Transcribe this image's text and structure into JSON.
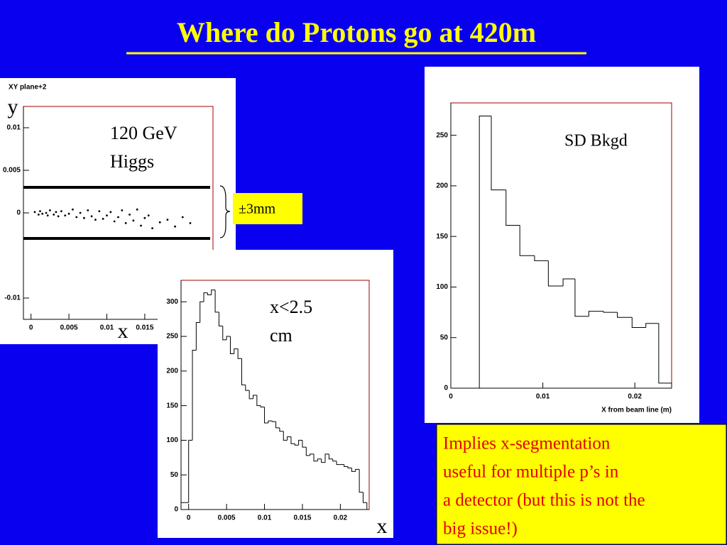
{
  "title": "Where do Protons go at 420m",
  "chart_data": [
    {
      "type": "scatter",
      "title": "XY plane+2",
      "ylabel": "y",
      "xlabel": "x",
      "annotation": [
        "120 GeV",
        "Higgs"
      ],
      "band_label": "±3mm",
      "hlines": [
        0.003,
        -0.003
      ],
      "xlim": [
        -0.001,
        0.024
      ],
      "ylim": [
        -0.0125,
        0.0125
      ],
      "xticks": [
        0,
        0.005,
        0.01,
        0.015
      ],
      "yticks": [
        -0.01,
        0,
        0.005,
        0.01
      ],
      "color": "#000000",
      "x": [
        0.0005,
        0.001,
        0.0012,
        0.0015,
        0.002,
        0.0022,
        0.0025,
        0.003,
        0.0033,
        0.0036,
        0.004,
        0.0045,
        0.005,
        0.0055,
        0.006,
        0.0065,
        0.007,
        0.0075,
        0.008,
        0.0085,
        0.009,
        0.0095,
        0.01,
        0.0105,
        0.011,
        0.0115,
        0.012,
        0.0125,
        0.013,
        0.0135,
        0.014,
        0.0145,
        0.015,
        0.0155,
        0.016,
        0.017,
        0.018,
        0.019,
        0.02,
        0.021
      ],
      "y": [
        0.0001,
        -0.0002,
        0.0002,
        -0.0001,
        0,
        -0.0003,
        0.0003,
        -0.0002,
        0.0001,
        -0.0004,
        0.0002,
        -0.0003,
        -0.0001,
        0.0004,
        -0.0005,
        0,
        -0.0006,
        0.0003,
        -0.0004,
        -0.0008,
        0.0002,
        -0.0007,
        -0.0003,
        0.0001,
        -0.001,
        -0.0005,
        0.0003,
        -0.0012,
        -0.0002,
        -0.0009,
        0.0004,
        -0.0015,
        -0.0006,
        -0.0003,
        -0.0018,
        -0.0011,
        -0.0008,
        -0.0016,
        -0.0005,
        -0.0012
      ]
    },
    {
      "type": "histogram",
      "xlabel": "x",
      "annotation": [
        "x<2.5",
        "cm"
      ],
      "xlim": [
        -0.001,
        0.0238
      ],
      "ylim": [
        0,
        331
      ],
      "xticks": [
        0,
        0.005,
        0.01,
        0.015,
        0.02
      ],
      "yticks": [
        0,
        50,
        100,
        150,
        200,
        250,
        300
      ],
      "color": "#000000",
      "bins": [
        -0.001,
        -0.0005,
        0,
        0.0005,
        0.001,
        0.0015,
        0.002,
        0.0025,
        0.003,
        0.0035,
        0.004,
        0.0045,
        0.005,
        0.0055,
        0.006,
        0.0065,
        0.007,
        0.0075,
        0.008,
        0.0085,
        0.009,
        0.0095,
        0.01,
        0.0105,
        0.011,
        0.0115,
        0.012,
        0.0125,
        0.013,
        0.0135,
        0.014,
        0.0145,
        0.015,
        0.0155,
        0.016,
        0.0165,
        0.017,
        0.0175,
        0.018,
        0.0185,
        0.019,
        0.0195,
        0.02,
        0.0205,
        0.021,
        0.0215,
        0.022,
        0.0225,
        0.023,
        0.0235
      ],
      "values": [
        10,
        10,
        100,
        230,
        270,
        300,
        313,
        310,
        317,
        285,
        265,
        245,
        250,
        225,
        232,
        218,
        180,
        172,
        160,
        165,
        150,
        148,
        125,
        128,
        127,
        118,
        113,
        100,
        105,
        95,
        93,
        100,
        90,
        78,
        80,
        70,
        73,
        68,
        80,
        73,
        70,
        65,
        65,
        62,
        60,
        55,
        58,
        25,
        10
      ]
    },
    {
      "type": "histogram",
      "xlabel": "X from beam line (m)",
      "annotation": [
        "SD Bkgd"
      ],
      "xlim": [
        0,
        0.024
      ],
      "ylim": [
        0,
        282
      ],
      "xticks": [
        0,
        0.01,
        0.02
      ],
      "yticks": [
        0,
        50,
        100,
        150,
        200,
        250
      ],
      "color": "#000000",
      "bins": [
        0.0031,
        0.0044,
        0.006,
        0.0075,
        0.0091,
        0.0106,
        0.0122,
        0.0135,
        0.015,
        0.0166,
        0.0181,
        0.0197,
        0.0212,
        0.0226,
        0.024
      ],
      "values": [
        269,
        196,
        161,
        131,
        126,
        101,
        108,
        71,
        76,
        75,
        70,
        60,
        64,
        5
      ]
    }
  ],
  "note": [
    "Implies x-segmentation",
    "useful for multiple p’s in",
    "a detector (but this is not the",
    "big issue!)"
  ]
}
